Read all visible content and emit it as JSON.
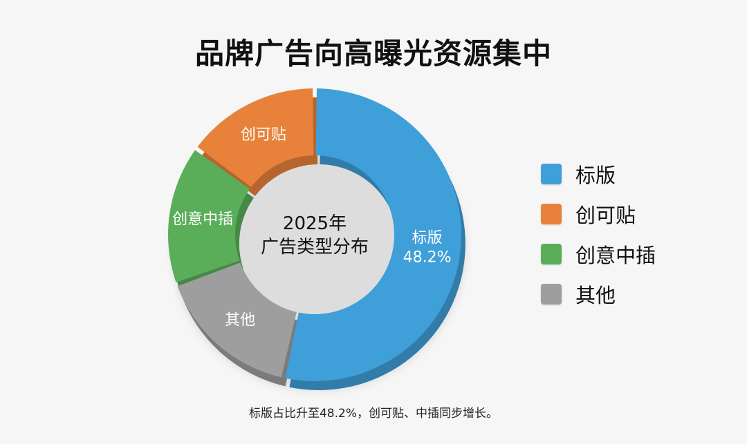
{
  "chart_data": {
    "type": "pie",
    "title": "品牌广告向高曝光资源集中",
    "center_label": [
      "2025年",
      "广告类型分布"
    ],
    "slices": [
      {
        "name": "标版",
        "value": 48.2,
        "value_label": "48.2%",
        "color": "#3f9fd8"
      },
      {
        "name": "其他",
        "value": 14.5,
        "color": "#9e9e9e"
      },
      {
        "name": "创意中插",
        "value": 14.0,
        "color": "#5aae5a"
      },
      {
        "name": "创可贴",
        "value": 13.5,
        "color": "#e8823a"
      }
    ],
    "legend": [
      {
        "name": "标版",
        "color": "#3f9fd8"
      },
      {
        "name": "创可贴",
        "color": "#e8823a"
      },
      {
        "name": "创意中插",
        "color": "#5aae5a"
      },
      {
        "name": "其他",
        "color": "#9e9e9e"
      }
    ],
    "legend_position": "right",
    "footnote": "标版占比升至48.2%，创可贴、中插同步增长。"
  }
}
